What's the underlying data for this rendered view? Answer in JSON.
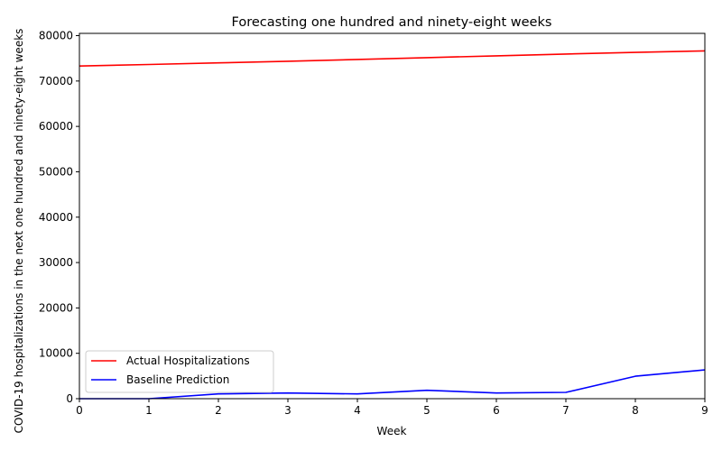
{
  "chart_data": {
    "type": "line",
    "title": "Forecasting one hundred and ninety-eight weeks",
    "xlabel": "Week",
    "ylabel": "COVID-19 hospitalizations in the next one hundred and ninety-eight weeks",
    "x": [
      0,
      1,
      2,
      3,
      4,
      5,
      6,
      7,
      8,
      9
    ],
    "xlim": [
      0,
      9
    ],
    "ylim": [
      0,
      80500
    ],
    "xticks": [
      "0",
      "1",
      "2",
      "3",
      "4",
      "5",
      "6",
      "7",
      "8",
      "9"
    ],
    "yticks": [
      "0",
      "10000",
      "20000",
      "30000",
      "40000",
      "50000",
      "60000",
      "70000",
      "80000"
    ],
    "grid": false,
    "legend_position": "lower-left",
    "series": [
      {
        "name": "Actual Hospitalizations",
        "color": "#ff0000",
        "values": [
          73300,
          73650,
          74000,
          74350,
          74750,
          75150,
          75550,
          75950,
          76300,
          76650
        ]
      },
      {
        "name": "Baseline Prediction",
        "color": "#0000ff",
        "values": [
          0,
          0,
          1050,
          1250,
          1050,
          1850,
          1250,
          1400,
          4950,
          6350
        ]
      }
    ]
  }
}
